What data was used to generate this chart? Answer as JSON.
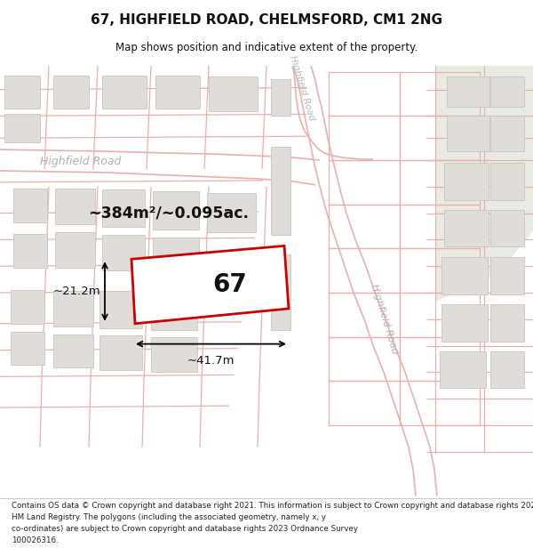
{
  "title": "67, HIGHFIELD ROAD, CHELMSFORD, CM1 2NG",
  "subtitle": "Map shows position and indicative extent of the property.",
  "footer": "Contains OS data © Crown copyright and database right 2021. This information is subject to Crown copyright and database rights 2023 and is reproduced with the permission of\nHM Land Registry. The polygons (including the associated geometry, namely x, y\nco-ordinates) are subject to Crown copyright and database rights 2023 Ordnance Survey\n100026316.",
  "area_label": "~384m²/~0.095ac.",
  "width_label": "~41.7m",
  "height_label": "~21.2m",
  "plot_number": "67",
  "map_bg": "#f7f5f2",
  "map_bg_right": "#eef0ec",
  "road_fill": "#f0ede8",
  "line_color": "#e8b0ac",
  "building_fill": "#e0ddd8",
  "building_edge": "#c8c5c0",
  "highlight_fill": "#ffffff",
  "highlight_edge": "#cc0000",
  "road_label_color": "#aaaaaa",
  "annotation_color": "#111111",
  "title_color": "#111111",
  "footer_color": "#222222"
}
